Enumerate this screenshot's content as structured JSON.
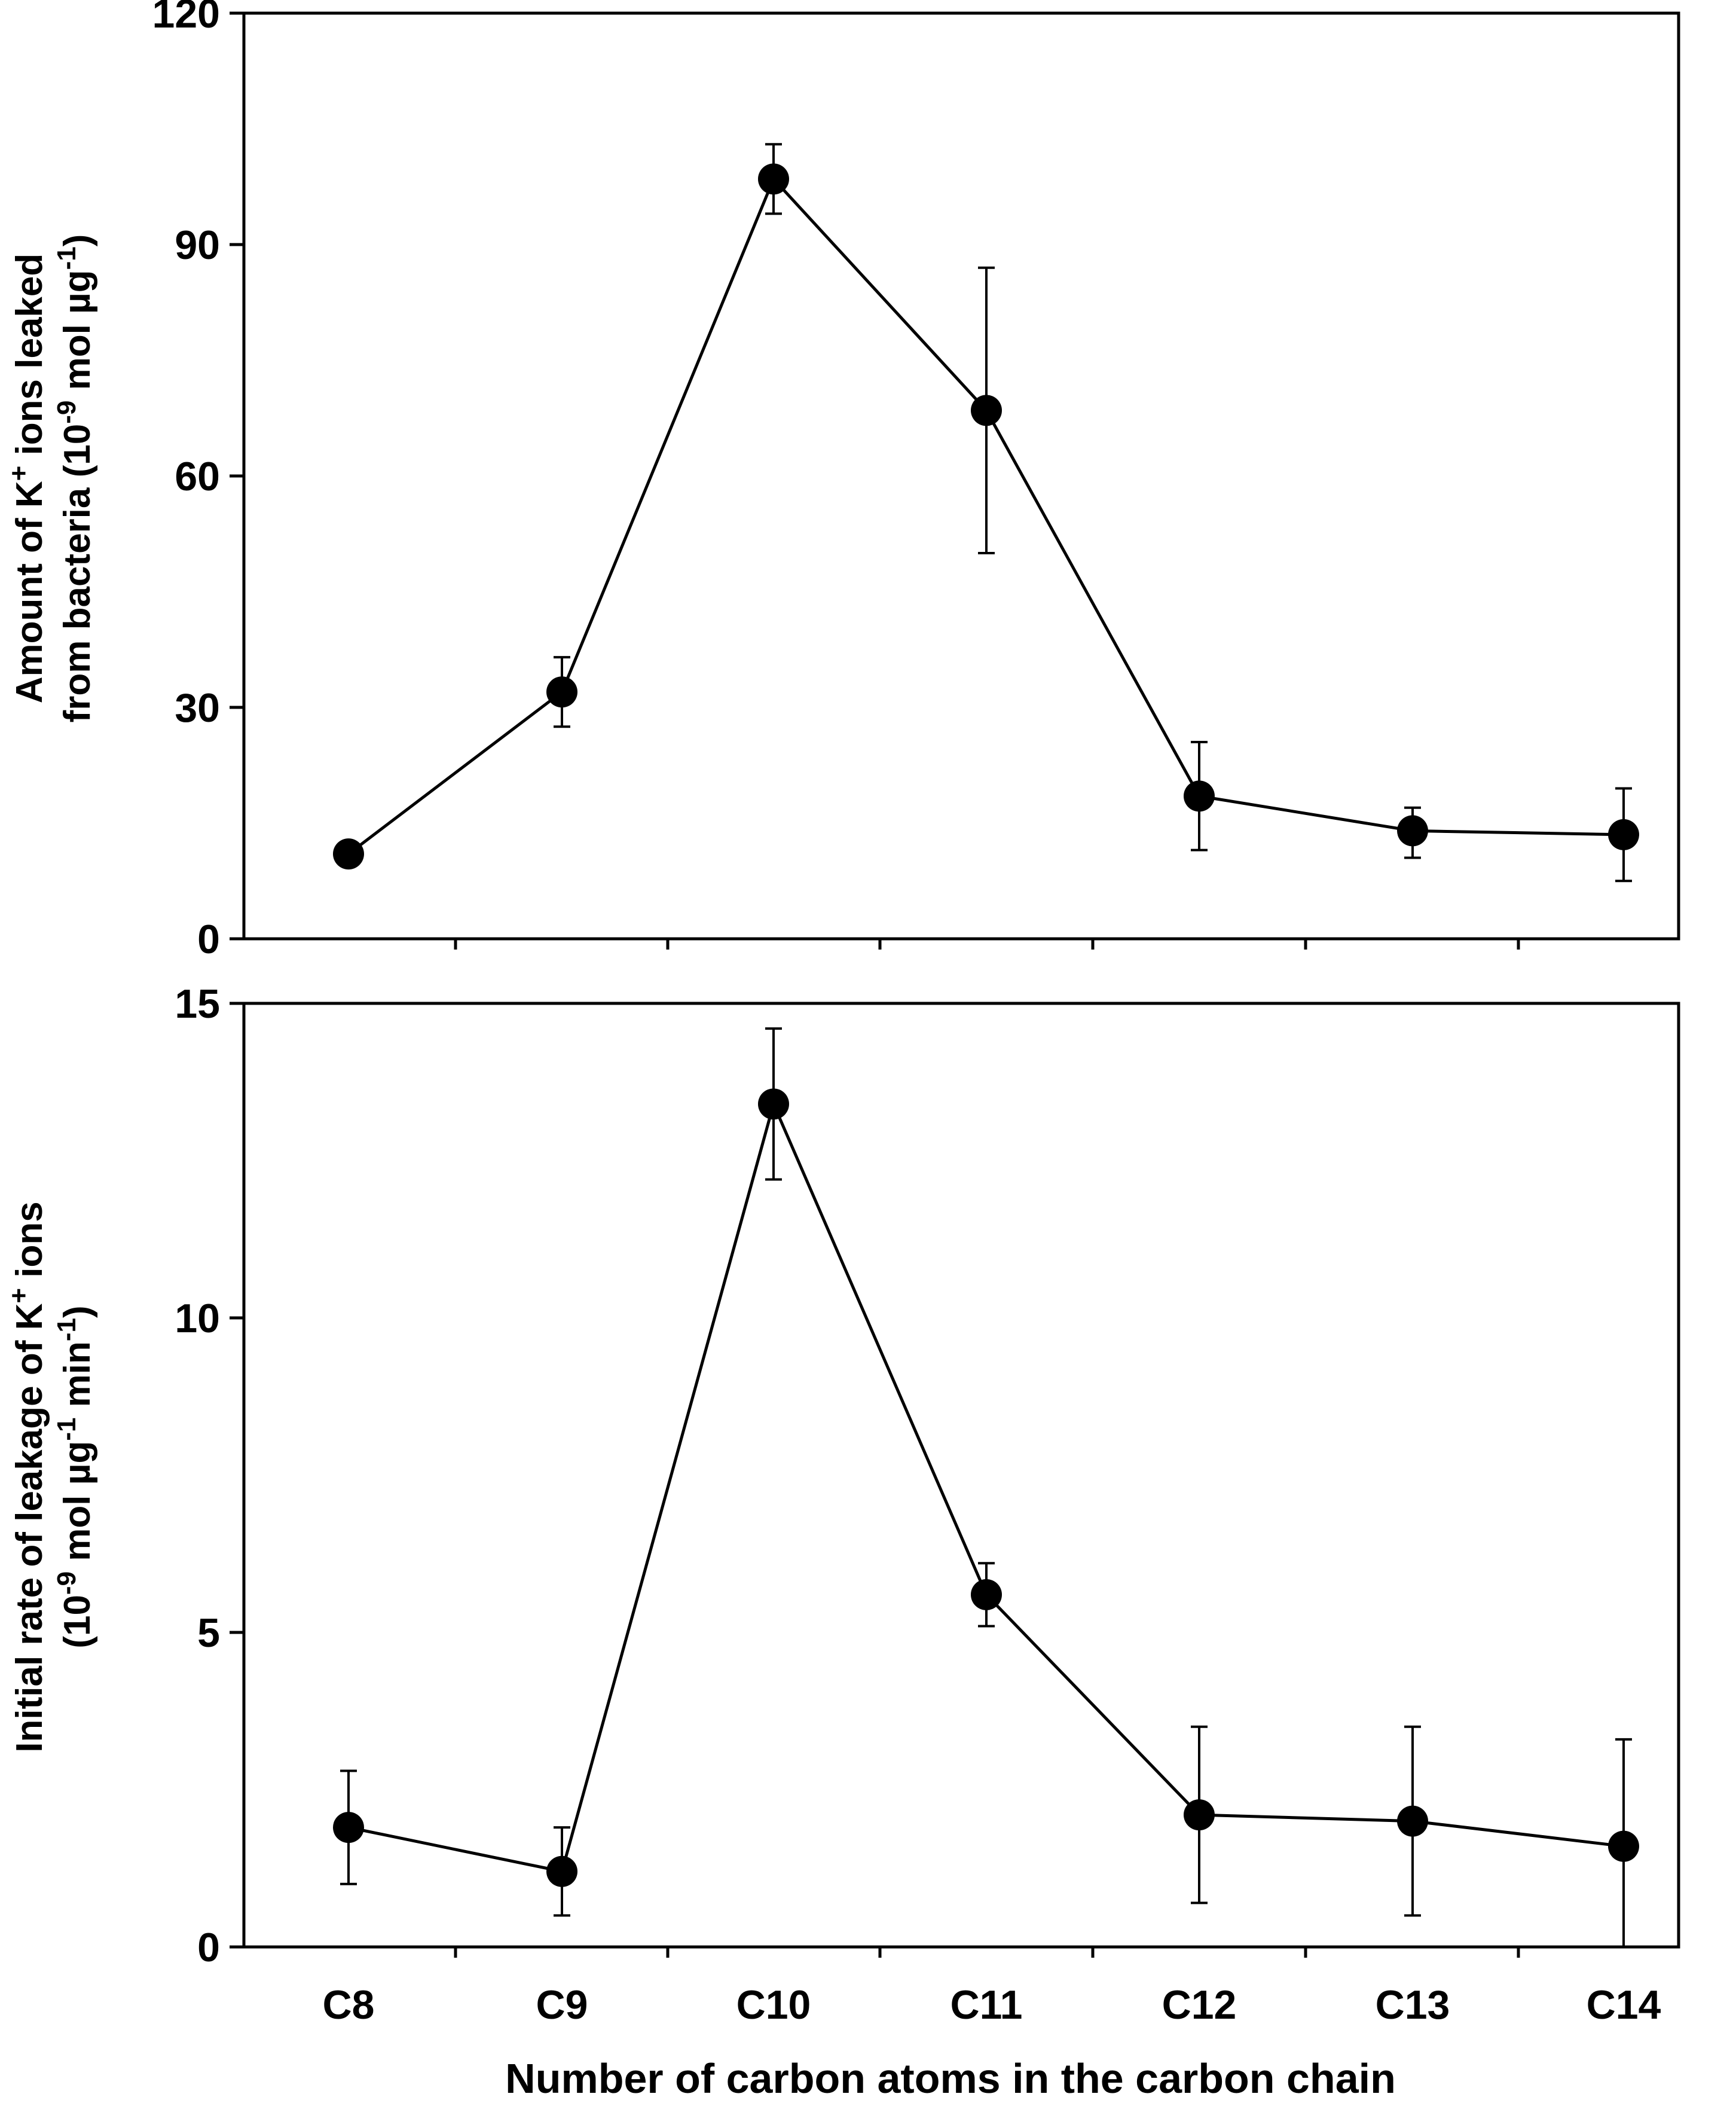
{
  "chart_data": [
    {
      "type": "line",
      "panel": "top",
      "title": "",
      "categories": [
        "C8",
        "C9",
        "C10",
        "C11",
        "C12",
        "C13",
        "C14"
      ],
      "series": [
        {
          "name": "K+ ions leaked",
          "values": [
            11,
            32,
            98.5,
            68.5,
            18.5,
            14,
            13.5
          ],
          "error_low": [
            11,
            27.5,
            94,
            50,
            11.5,
            10.5,
            7.5
          ],
          "error_high": [
            11,
            36.5,
            103,
            87,
            25.5,
            17,
            19.5
          ]
        }
      ],
      "ylabel_line1": "Amount of K",
      "ylabel_sup1": "+",
      "ylabel_line1_end": " ions leaked",
      "ylabel_line2": "from bacteria (10",
      "ylabel_sup2": "-9",
      "ylabel_line2_mid": " mol µg",
      "ylabel_sup3": "-1",
      "ylabel_line2_end": ")",
      "ylim": [
        0,
        120
      ],
      "yticks": [
        "0",
        "30",
        "60",
        "90",
        "120"
      ],
      "grid": false
    },
    {
      "type": "line",
      "panel": "bottom",
      "title": "",
      "categories": [
        "C8",
        "C9",
        "C10",
        "C11",
        "C12",
        "C13",
        "C14"
      ],
      "series": [
        {
          "name": "Initial rate of leakage",
          "values": [
            1.9,
            1.2,
            13.4,
            5.6,
            2.1,
            2.0,
            1.6
          ],
          "error_low": [
            1.0,
            0.5,
            12.2,
            5.1,
            0.7,
            0.5,
            0.0
          ],
          "error_high": [
            2.8,
            1.9,
            14.6,
            6.1,
            3.5,
            3.5,
            3.3
          ]
        }
      ],
      "ylabel_line1": "Initial rate of leakage of K",
      "ylabel_sup1": "+",
      "ylabel_line1_end": " ions",
      "ylabel_line2": "(10",
      "ylabel_sup2": "-9",
      "ylabel_line2_mid": " mol µg",
      "ylabel_sup3": "-1",
      "ylabel_line2_mid2": " min",
      "ylabel_sup4": "-1",
      "ylabel_line2_end": ")",
      "ylim": [
        0,
        15
      ],
      "yticks": [
        "0",
        "5",
        "10",
        "15"
      ],
      "grid": false
    }
  ],
  "xlabel": "Number of carbon atoms in the carbon chain"
}
